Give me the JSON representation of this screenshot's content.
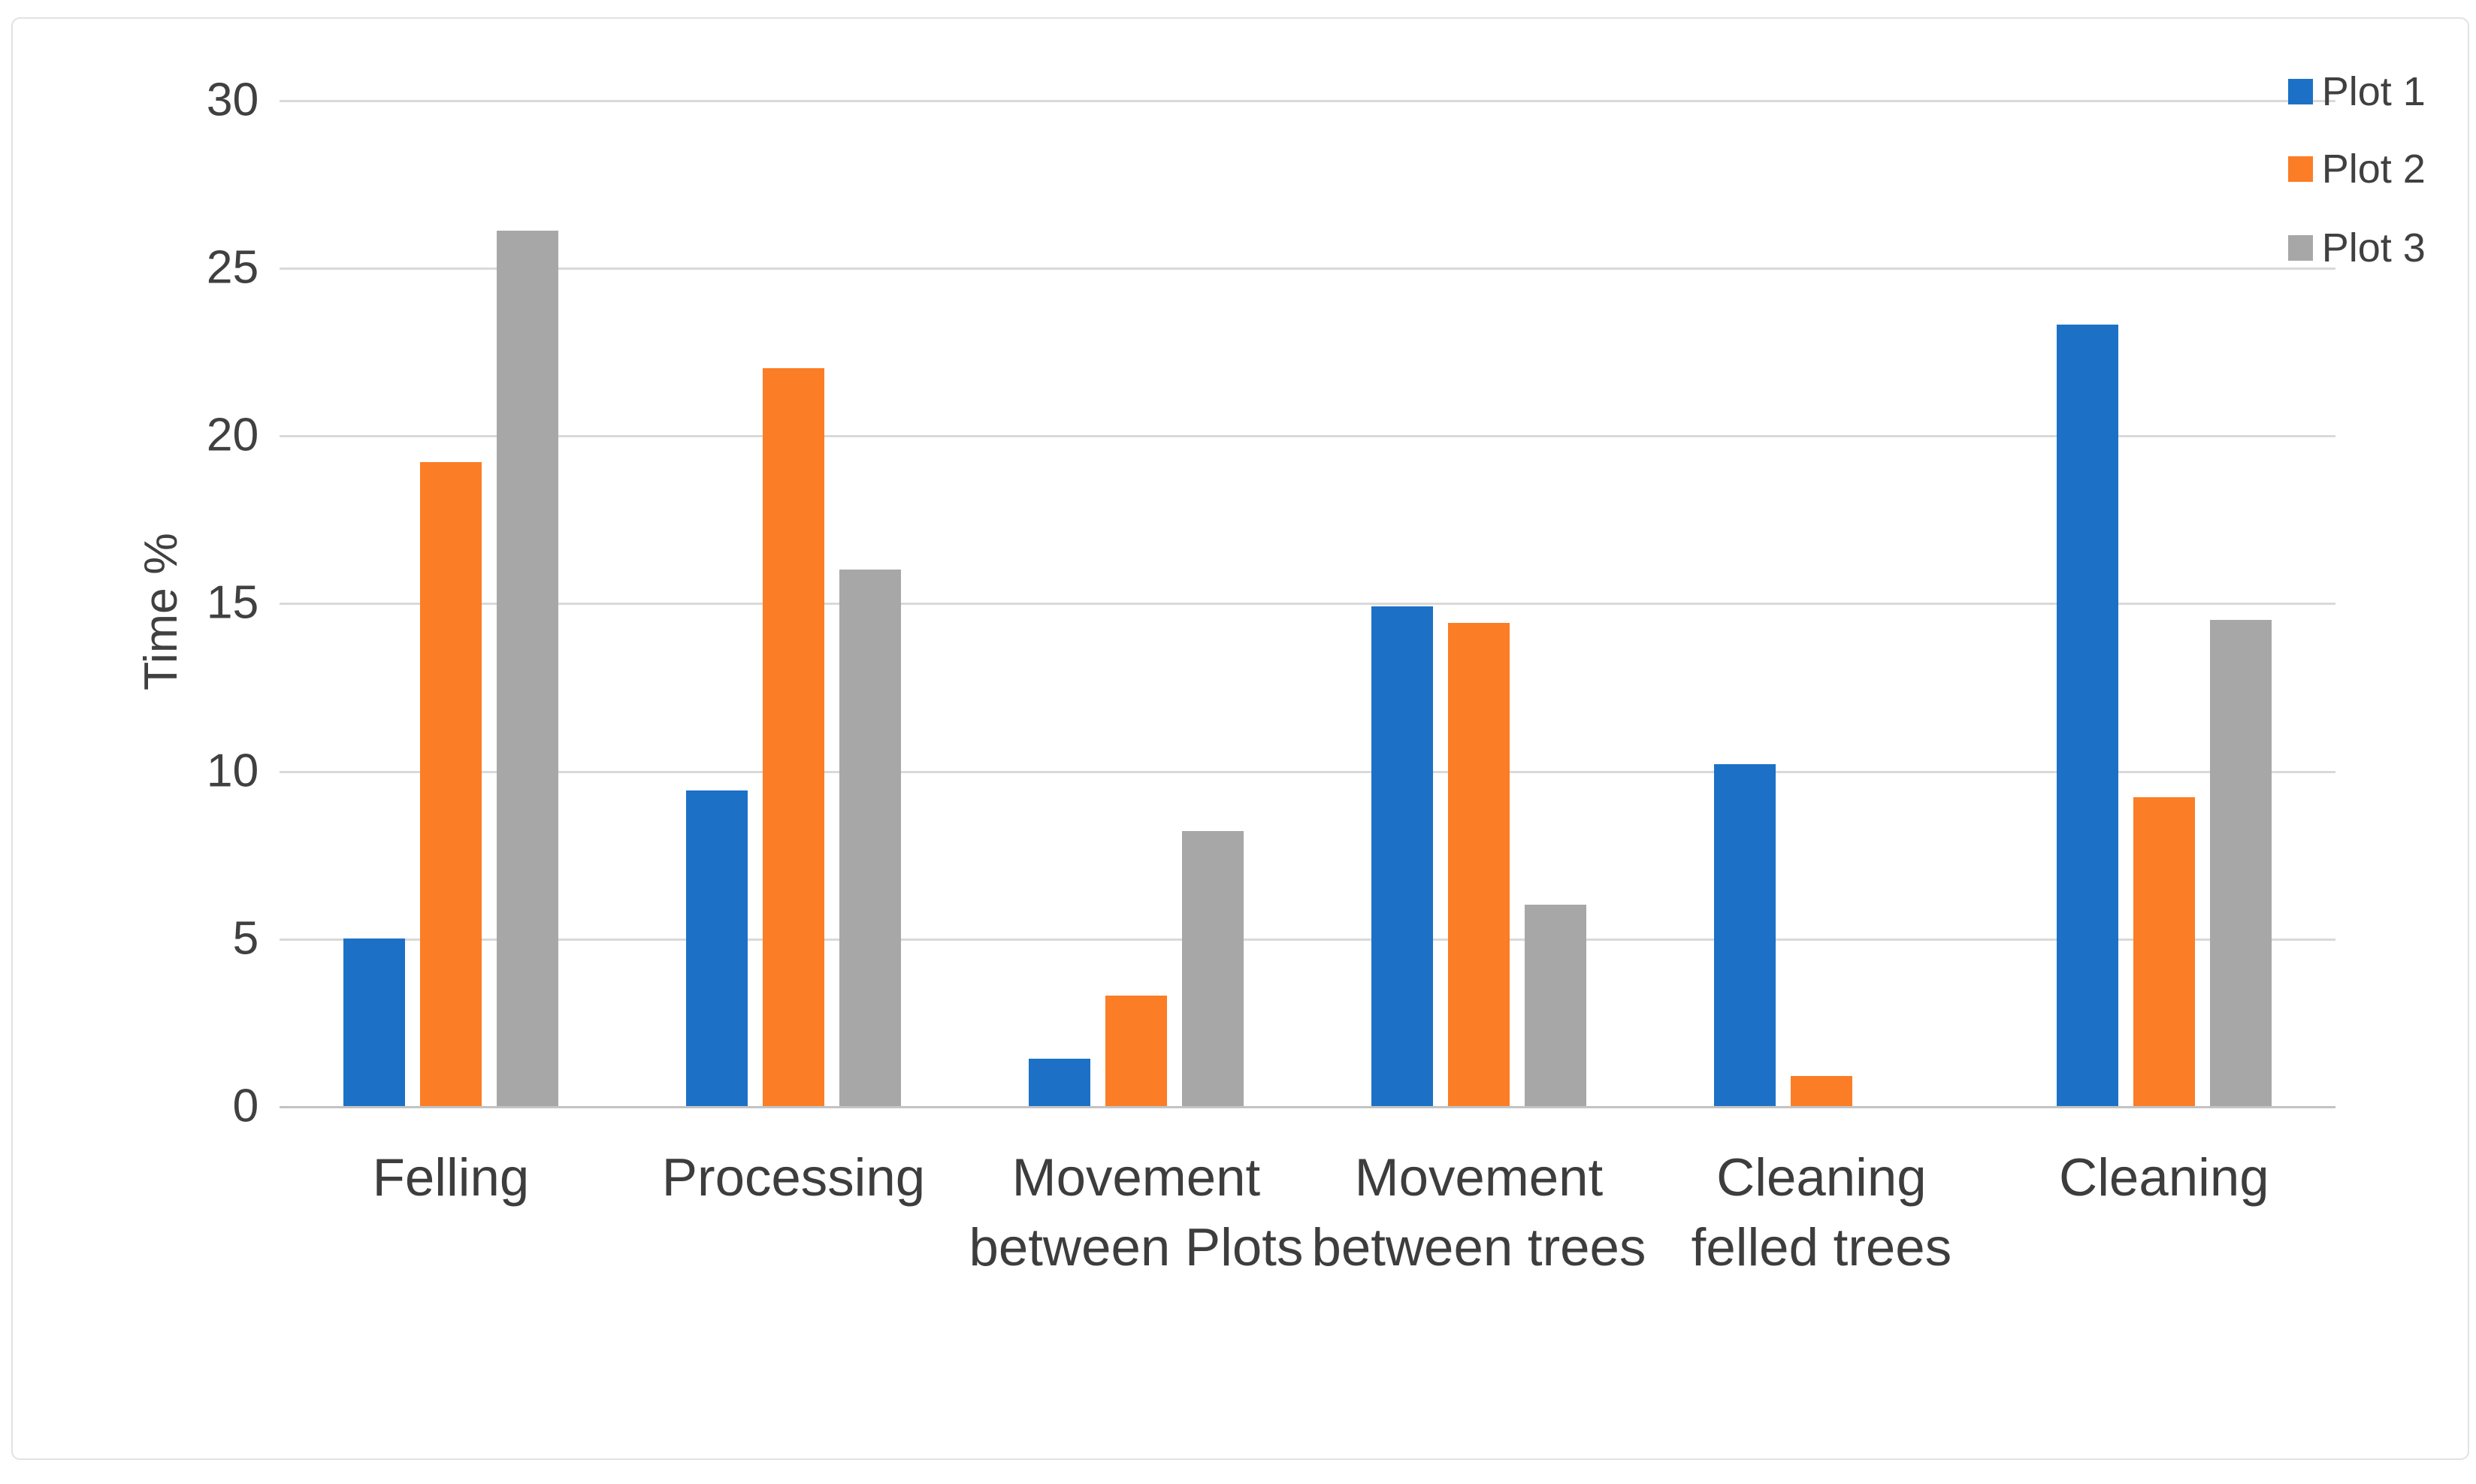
{
  "figure": {
    "background": "#FFFFFF",
    "frame_border_color": "#E2E2E2"
  },
  "chart_data": {
    "type": "bar",
    "title": "",
    "xlabel": "",
    "ylabel": "Time %",
    "categories": [
      "Felling",
      "Processing",
      "Movement between Plots",
      "Movement between trees",
      "Cleaning felled trees",
      "Cleaning"
    ],
    "series": [
      {
        "name": "Plot 1",
        "color": "#1C71C7",
        "values": [
          5.0,
          9.4,
          1.4,
          14.9,
          10.2,
          23.3
        ]
      },
      {
        "name": "Plot 2",
        "color": "#FB7D25",
        "values": [
          19.2,
          22.0,
          3.3,
          14.4,
          0.9,
          9.2
        ]
      },
      {
        "name": "Plot 3",
        "color": "#A7A7A7",
        "values": [
          26.1,
          16.0,
          8.2,
          6.0,
          0,
          14.5
        ]
      }
    ],
    "ylim": [
      0,
      30
    ],
    "yticks": [
      0,
      5,
      10,
      15,
      20,
      25,
      30
    ],
    "grid": "horizontal",
    "gridline_color": "#D9D9D9",
    "baseline_color": "#C3C3C3",
    "text_color": "#404040",
    "legend_position": "top-right",
    "legend": [
      "Plot 1",
      "Plot 2",
      "Plot 3"
    ]
  }
}
